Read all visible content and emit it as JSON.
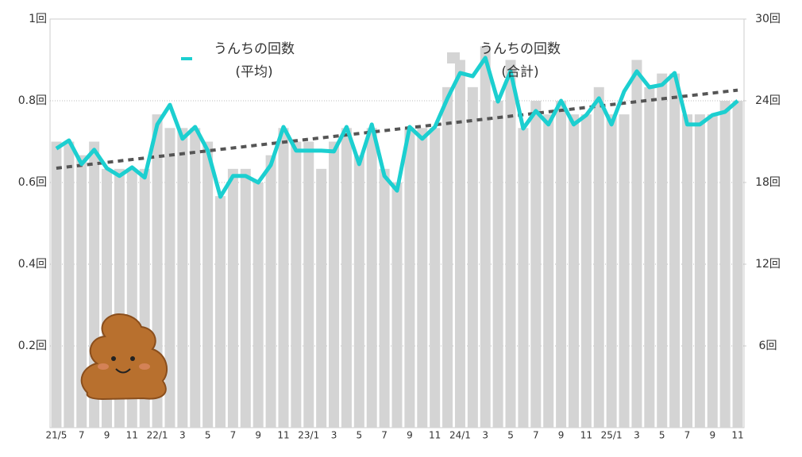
{
  "chart_data": {
    "type": "bar-line",
    "categories": [
      "21/5",
      null,
      "7",
      null,
      "9",
      null,
      "11",
      null,
      "22/1",
      null,
      "3",
      null,
      "5",
      null,
      "7",
      null,
      "9",
      null,
      "11",
      null,
      "23/1",
      null,
      "3",
      null,
      "5",
      null,
      "7",
      null,
      "9",
      null,
      "11",
      null,
      "24/1",
      null,
      "3",
      null,
      "5",
      null,
      "7",
      null,
      "9",
      null,
      "11",
      null,
      "25/1",
      null,
      "3",
      null,
      "5",
      null,
      "7",
      null,
      "9",
      null,
      "11"
    ],
    "series": [
      {
        "name": "うんちの回数",
        "sub": "(平均)",
        "kind": "line",
        "axis": "y",
        "color": "#1ccfd0",
        "values": [
          0.683,
          0.703,
          0.645,
          0.68,
          0.635,
          0.616,
          0.637,
          0.612,
          0.742,
          0.79,
          0.707,
          0.736,
          0.678,
          0.565,
          0.616,
          0.616,
          0.6,
          0.643,
          0.736,
          0.678,
          0.678,
          0.678,
          0.676,
          0.736,
          0.645,
          0.742,
          0.616,
          0.58,
          0.736,
          0.707,
          0.736,
          0.806,
          0.868,
          0.86,
          0.905,
          0.798,
          0.872,
          0.732,
          0.775,
          0.742,
          0.8,
          0.742,
          0.765,
          0.806,
          0.742,
          0.823,
          0.872,
          0.833,
          0.839,
          0.868,
          0.742,
          0.742,
          0.765,
          0.773,
          0.8
        ]
      },
      {
        "name": "うんちの回数",
        "sub": "(合計)",
        "kind": "bar",
        "axis": "y2",
        "color": "#d4d4d4",
        "values": [
          21,
          21,
          20,
          21,
          19,
          19,
          19,
          19,
          23,
          22,
          22,
          22,
          21,
          17,
          19,
          19,
          18,
          20,
          22,
          21,
          21,
          19,
          21,
          22,
          20,
          22,
          19,
          18,
          22,
          22,
          22,
          25,
          27,
          25,
          28,
          24,
          27,
          22,
          24,
          23,
          24,
          23,
          23,
          25,
          23,
          23,
          27,
          25,
          26,
          26,
          23,
          23,
          23,
          24,
          24
        ]
      }
    ],
    "trendline": {
      "start": 0.635,
      "end": 0.826,
      "color": "#555555"
    },
    "ylim": [
      0,
      1
    ],
    "yticks": [
      {
        "value": 0.2,
        "label": "0.2回"
      },
      {
        "value": 0.4,
        "label": "0.4回"
      },
      {
        "value": 0.6,
        "label": "0.6回"
      },
      {
        "value": 0.8,
        "label": "0.8回"
      },
      {
        "value": 1,
        "label": "1回"
      }
    ],
    "y2lim": [
      0,
      30
    ],
    "y2ticks": [
      {
        "value": 6,
        "label": "6回"
      },
      {
        "value": 12,
        "label": "12回"
      },
      {
        "value": 18,
        "label": "18回"
      },
      {
        "value": 24,
        "label": "24回"
      },
      {
        "value": 30,
        "label": "30回"
      }
    ],
    "grid": true
  }
}
